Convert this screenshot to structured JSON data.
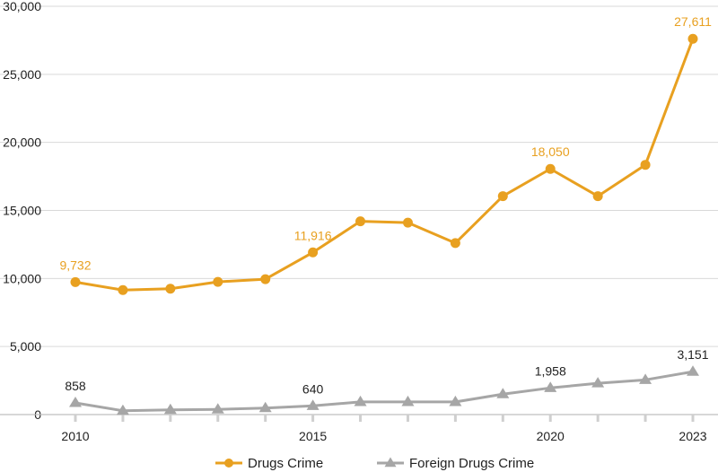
{
  "chart_data": {
    "type": "line",
    "x": [
      2010,
      2011,
      2012,
      2013,
      2014,
      2015,
      2016,
      2017,
      2018,
      2019,
      2020,
      2021,
      2022,
      2023
    ],
    "x_tick_labels": [
      "2010",
      "2015",
      "2020",
      "2023"
    ],
    "x_tick_values": [
      2010,
      2015,
      2020,
      2023
    ],
    "y_tick_labels": [
      "0",
      "5,000",
      "10,000",
      "15,000",
      "20,000",
      "25,000",
      "30,000"
    ],
    "ylim": [
      0,
      30000
    ],
    "grid": "horizontal",
    "legend_position": "bottom",
    "series": [
      {
        "name": "Drugs Crime",
        "color": "#E8A020",
        "marker": "circle",
        "values": [
          9732,
          9150,
          9250,
          9750,
          9950,
          11916,
          14200,
          14100,
          12600,
          16050,
          18050,
          16050,
          18350,
          27611
        ],
        "labels": [
          {
            "index": 0,
            "text": "9,732"
          },
          {
            "index": 5,
            "text": "11,916"
          },
          {
            "index": 10,
            "text": "18,050"
          },
          {
            "index": 13,
            "text": "27,611"
          }
        ]
      },
      {
        "name": "Foreign Drugs Crime",
        "color": "#A6A6A6",
        "marker": "triangle",
        "values": [
          858,
          280,
          350,
          380,
          480,
          640,
          930,
          930,
          930,
          1500,
          1958,
          2300,
          2550,
          3151
        ],
        "labels": [
          {
            "index": 0,
            "text": "858"
          },
          {
            "index": 5,
            "text": "640"
          },
          {
            "index": 10,
            "text": "1,958"
          },
          {
            "index": 13,
            "text": "3,151"
          }
        ]
      }
    ]
  }
}
